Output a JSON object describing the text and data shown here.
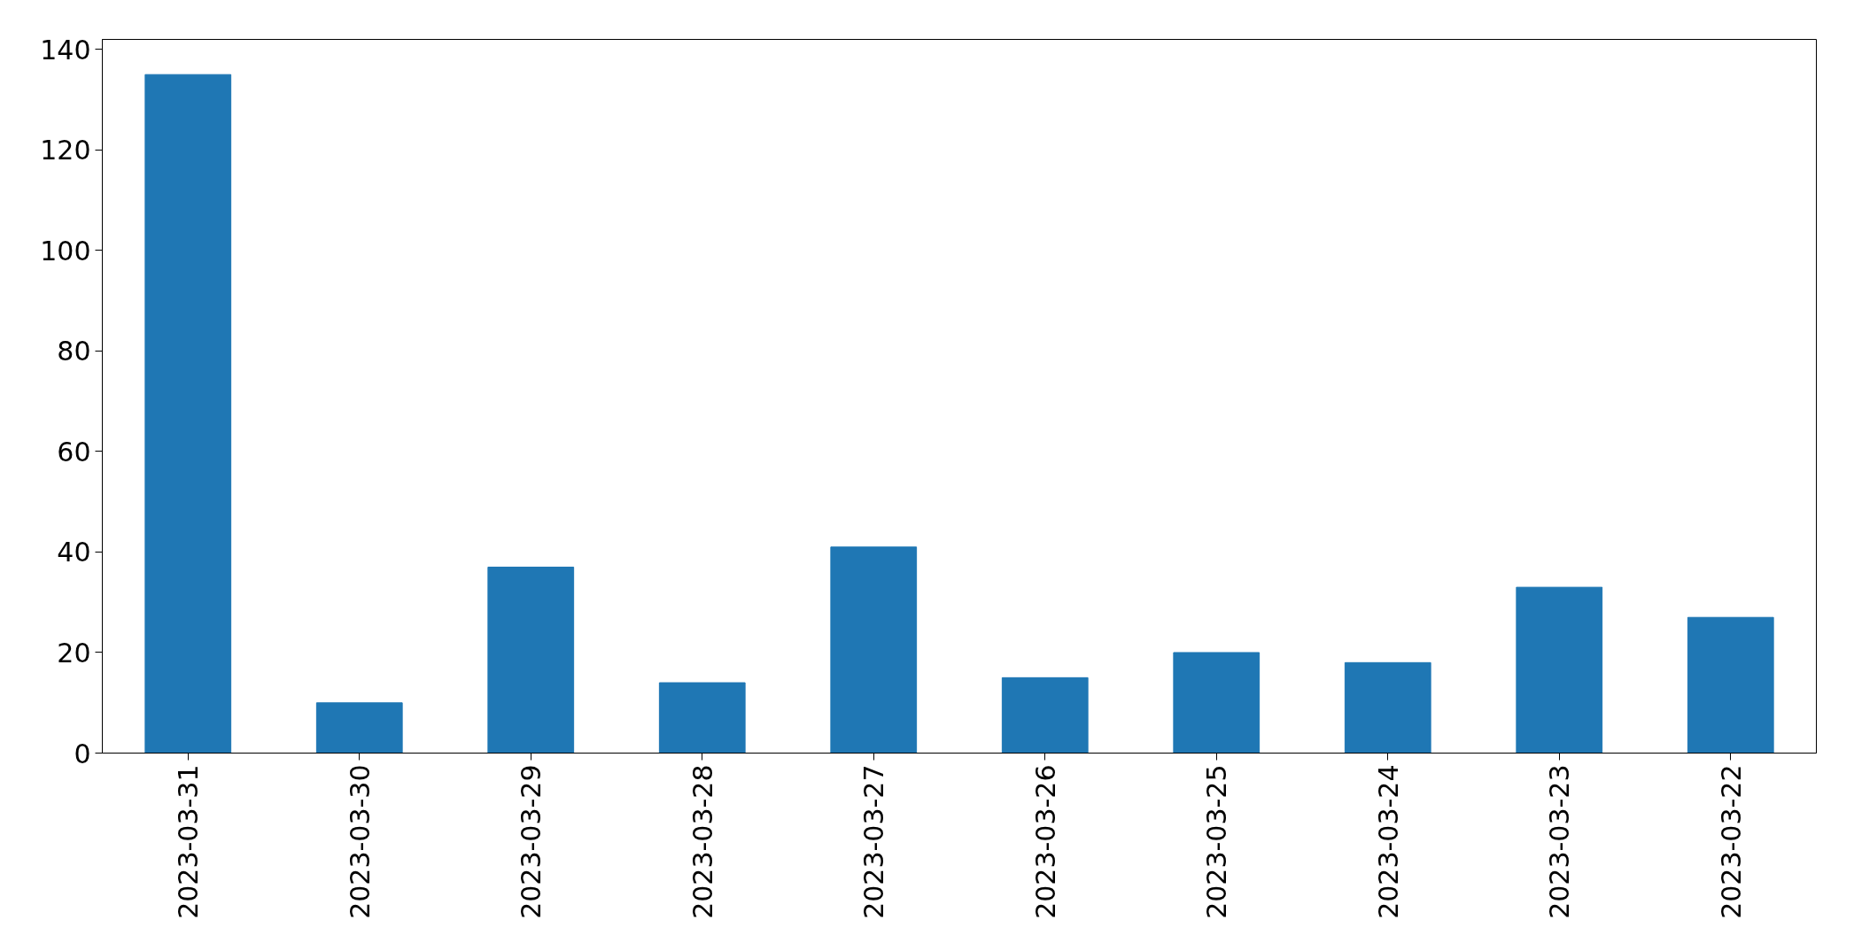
{
  "chart_data": {
    "type": "bar",
    "categories": [
      "2023-03-31",
      "2023-03-30",
      "2023-03-29",
      "2023-03-28",
      "2023-03-27",
      "2023-03-26",
      "2023-03-25",
      "2023-03-24",
      "2023-03-23",
      "2023-03-22"
    ],
    "values": [
      135,
      10,
      37,
      14,
      41,
      15,
      20,
      18,
      33,
      27
    ],
    "color": "#1f77b4",
    "ylim": [
      0,
      142
    ],
    "yticks": [
      0,
      20,
      40,
      60,
      80,
      100,
      120,
      140
    ],
    "grid": false
  }
}
